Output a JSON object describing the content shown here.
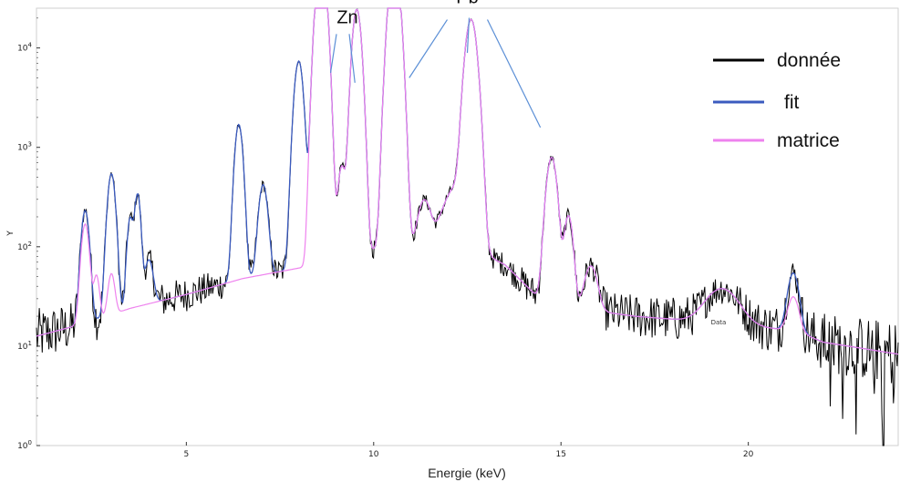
{
  "chart_data": {
    "type": "line",
    "xlabel": "Energie (keV)",
    "ylabel": "Y",
    "xlim": [
      1,
      24
    ],
    "ylim_log10": [
      0,
      4.4
    ],
    "yscale": "log",
    "x_ticks": [
      5,
      10,
      15,
      20
    ],
    "y_ticks": [
      {
        "exp": 0,
        "label_base": "10",
        "label_exp": "0"
      },
      {
        "exp": 1,
        "label_base": "10",
        "label_exp": "1"
      },
      {
        "exp": 2,
        "label_base": "10",
        "label_exp": "2"
      },
      {
        "exp": 3,
        "label_base": "10",
        "label_exp": "3"
      },
      {
        "exp": 4,
        "label_base": "10",
        "label_exp": "4"
      }
    ],
    "background_log10": [
      [
        1,
        1.1
      ],
      [
        2.2,
        1.22
      ],
      [
        3.5,
        1.38
      ],
      [
        5,
        1.52
      ],
      [
        6.5,
        1.68
      ],
      [
        8.5,
        1.82
      ],
      [
        9.3,
        1.92
      ],
      [
        10,
        1.97
      ],
      [
        11,
        1.98
      ],
      [
        12.4,
        2.02
      ],
      [
        13.5,
        1.82
      ],
      [
        14.5,
        1.45
      ],
      [
        15,
        1.42
      ],
      [
        16,
        1.35
      ],
      [
        17,
        1.3
      ],
      [
        18,
        1.27
      ],
      [
        20.6,
        1.18
      ],
      [
        21.3,
        1.15
      ],
      [
        22,
        1.04
      ],
      [
        24,
        0.92
      ]
    ],
    "peaks_fit": [
      [
        2.3,
        1.1,
        0.09
      ],
      [
        3.0,
        1.4,
        0.09
      ],
      [
        3.5,
        0.85,
        0.07
      ],
      [
        3.7,
        1.1,
        0.07
      ],
      [
        4.0,
        0.25,
        0.1
      ],
      [
        6.4,
        1.55,
        0.09
      ],
      [
        7.05,
        0.85,
        0.1
      ],
      [
        8.0,
        2.08,
        0.1
      ],
      [
        8.6,
        3.1,
        0.11
      ],
      [
        9.15,
        0.85,
        0.09
      ],
      [
        9.55,
        2.45,
        0.1
      ],
      [
        10.55,
        2.9,
        0.12
      ],
      [
        11.35,
        0.3,
        0.15
      ],
      [
        12.2,
        0.45,
        0.3
      ],
      [
        12.6,
        2.3,
        0.13
      ],
      [
        14.75,
        1.45,
        0.12
      ],
      [
        15.2,
        0.85,
        0.1
      ],
      [
        15.8,
        0.25,
        0.15
      ],
      [
        19.3,
        0.1,
        0.4
      ],
      [
        21.2,
        0.45,
        0.13
      ]
    ],
    "peaks_matrix": [
      [
        2.3,
        0.95,
        0.09
      ],
      [
        2.6,
        0.25,
        0.07
      ],
      [
        3.0,
        0.2,
        0.08
      ],
      [
        8.6,
        3.1,
        0.11
      ],
      [
        9.15,
        0.85,
        0.09
      ],
      [
        9.55,
        2.45,
        0.1
      ],
      [
        10.55,
        2.9,
        0.12
      ],
      [
        11.35,
        0.3,
        0.15
      ],
      [
        12.2,
        0.45,
        0.3
      ],
      [
        12.6,
        2.3,
        0.13
      ],
      [
        14.75,
        1.45,
        0.12
      ],
      [
        15.2,
        0.85,
        0.1
      ],
      [
        15.8,
        0.25,
        0.15
      ],
      [
        19.3,
        0.1,
        0.4
      ],
      [
        21.2,
        0.08,
        0.13
      ]
    ],
    "series": [
      {
        "name": "donnée",
        "color": "#000000"
      },
      {
        "name": "fit",
        "color": "#3b5bbf"
      },
      {
        "name": "matrice",
        "color": "#ee82ee"
      }
    ],
    "legend_position": "top-right",
    "annotations": [
      {
        "text": "Zn",
        "x": 9.3,
        "y_log10": 4.25
      },
      {
        "text": "Pb",
        "x": 12.5,
        "y_log10": 4.45
      }
    ],
    "small_text": "Data"
  }
}
